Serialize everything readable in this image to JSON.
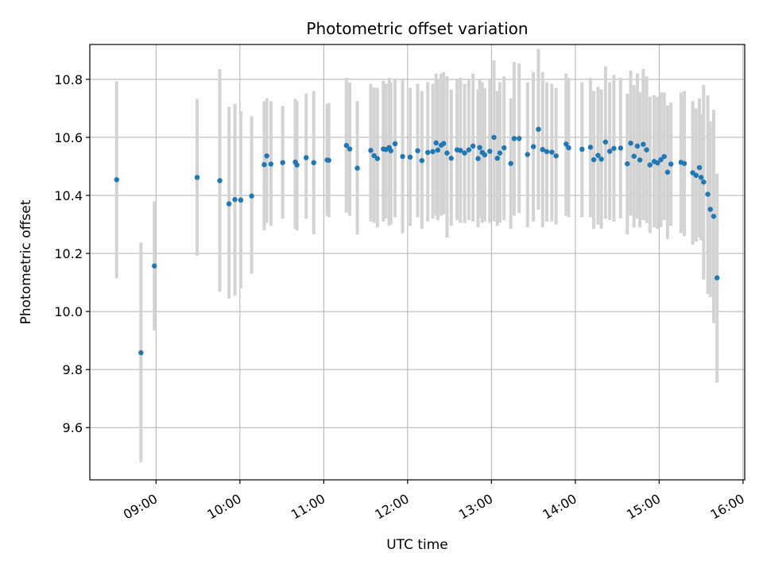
{
  "chart_data": {
    "type": "scatter",
    "title": "Photometric offset variation",
    "xlabel": "UTC time",
    "ylabel": "Photometric offset",
    "x_unit": "hours UTC",
    "xlim": [
      8.21,
      16.02
    ],
    "ylim": [
      9.42,
      10.92
    ],
    "grid": true,
    "legend": "none",
    "xticks": [
      {
        "value": 9,
        "label": "09:00"
      },
      {
        "value": 10,
        "label": "10:00"
      },
      {
        "value": 11,
        "label": "11:00"
      },
      {
        "value": 12,
        "label": "12:00"
      },
      {
        "value": 13,
        "label": "13:00"
      },
      {
        "value": 14,
        "label": "14:00"
      },
      {
        "value": 15,
        "label": "15:00"
      },
      {
        "value": 16,
        "label": "16:00"
      }
    ],
    "yticks": [
      {
        "value": 9.6,
        "label": "9.6"
      },
      {
        "value": 9.8,
        "label": "9.8"
      },
      {
        "value": 10.0,
        "label": "10.0"
      },
      {
        "value": 10.2,
        "label": "10.2"
      },
      {
        "value": 10.4,
        "label": "10.4"
      },
      {
        "value": 10.6,
        "label": "10.6"
      },
      {
        "value": 10.8,
        "label": "10.8"
      }
    ],
    "colors": {
      "point": "#1f77b4",
      "errorbar": "#d3d3d3",
      "grid": "#b0b0b0"
    },
    "series": [
      {
        "name": "offset",
        "x": [
          8.53,
          8.82,
          8.98,
          9.49,
          9.76,
          9.87,
          9.94,
          10.01,
          10.14,
          10.29,
          10.32,
          10.37,
          10.51,
          10.66,
          10.68,
          10.79,
          10.88,
          11.04,
          11.06,
          11.27,
          11.31,
          11.4,
          11.56,
          11.6,
          11.64,
          11.71,
          11.74,
          11.78,
          11.8,
          11.85,
          11.94,
          12.03,
          12.12,
          12.17,
          12.24,
          12.3,
          12.34,
          12.36,
          12.4,
          12.43,
          12.47,
          12.52,
          12.59,
          12.63,
          12.68,
          12.73,
          12.78,
          12.84,
          12.86,
          12.89,
          12.92,
          12.98,
          13.03,
          13.07,
          13.1,
          13.15,
          13.23,
          13.27,
          13.33,
          13.43,
          13.5,
          13.56,
          13.61,
          13.66,
          13.72,
          13.77,
          13.89,
          13.92,
          14.08,
          14.18,
          14.22,
          14.27,
          14.31,
          14.36,
          14.41,
          14.46,
          14.54,
          14.62,
          14.66,
          14.7,
          14.74,
          14.77,
          14.81,
          14.85,
          14.89,
          14.94,
          14.98,
          15.02,
          15.06,
          15.1,
          15.14,
          15.26,
          15.3,
          15.4,
          15.44,
          15.48,
          15.5,
          15.53,
          15.58,
          15.61,
          15.65,
          15.69
        ],
        "y": [
          10.454,
          9.858,
          10.157,
          10.462,
          10.451,
          10.371,
          10.386,
          10.384,
          10.398,
          10.506,
          10.536,
          10.508,
          10.513,
          10.515,
          10.505,
          10.53,
          10.513,
          10.522,
          10.521,
          10.572,
          10.56,
          10.494,
          10.555,
          10.537,
          10.527,
          10.56,
          10.558,
          10.565,
          10.554,
          10.578,
          10.534,
          10.532,
          10.554,
          10.52,
          10.548,
          10.551,
          10.581,
          10.556,
          10.573,
          10.579,
          10.546,
          10.528,
          10.557,
          10.555,
          10.546,
          10.557,
          10.57,
          10.527,
          10.565,
          10.548,
          10.54,
          10.552,
          10.6,
          10.528,
          10.546,
          10.564,
          10.51,
          10.596,
          10.596,
          10.541,
          10.568,
          10.628,
          10.558,
          10.551,
          10.549,
          10.536,
          10.577,
          10.564,
          10.559,
          10.566,
          10.523,
          10.538,
          10.525,
          10.584,
          10.552,
          10.562,
          10.563,
          10.509,
          10.58,
          10.535,
          10.57,
          10.522,
          10.576,
          10.557,
          10.505,
          10.517,
          10.512,
          10.523,
          10.534,
          10.48,
          10.508,
          10.514,
          10.51,
          10.478,
          10.469,
          10.496,
          10.462,
          10.446,
          10.404,
          10.352,
          10.328,
          10.116
        ],
        "y_err_low": [
          10.115,
          9.481,
          9.935,
          10.192,
          10.068,
          10.045,
          10.054,
          10.08,
          10.13,
          10.28,
          10.305,
          10.295,
          10.32,
          10.285,
          10.28,
          10.32,
          10.265,
          10.33,
          10.325,
          10.34,
          10.33,
          10.265,
          10.31,
          10.305,
          10.29,
          10.31,
          10.32,
          10.295,
          10.3,
          10.325,
          10.27,
          10.295,
          10.325,
          10.285,
          10.31,
          10.32,
          10.33,
          10.315,
          10.33,
          10.335,
          10.255,
          10.295,
          10.315,
          10.305,
          10.305,
          10.315,
          10.31,
          10.29,
          10.325,
          10.305,
          10.31,
          10.305,
          10.31,
          10.295,
          10.305,
          10.315,
          10.285,
          10.33,
          10.34,
          10.29,
          10.31,
          10.35,
          10.29,
          10.31,
          10.31,
          10.3,
          10.33,
          10.325,
          10.325,
          10.325,
          10.285,
          10.3,
          10.285,
          10.32,
          10.315,
          10.31,
          10.32,
          10.265,
          10.33,
          10.29,
          10.32,
          10.29,
          10.315,
          10.305,
          10.27,
          10.29,
          10.285,
          10.29,
          10.315,
          10.25,
          10.295,
          10.27,
          10.26,
          10.23,
          10.24,
          10.255,
          10.245,
          10.11,
          10.06,
          10.05,
          9.96,
          9.755
        ],
        "y_err_high": [
          10.793,
          10.237,
          10.38,
          10.732,
          10.835,
          10.705,
          10.715,
          10.69,
          10.673,
          10.724,
          10.735,
          10.725,
          10.708,
          10.733,
          10.725,
          10.751,
          10.76,
          10.715,
          10.718,
          10.805,
          10.79,
          10.725,
          10.785,
          10.772,
          10.77,
          10.795,
          10.785,
          10.805,
          10.79,
          10.8,
          10.8,
          10.77,
          10.785,
          10.76,
          10.79,
          10.785,
          10.82,
          10.8,
          10.82,
          10.825,
          10.81,
          10.765,
          10.8,
          10.805,
          10.785,
          10.8,
          10.82,
          10.765,
          10.8,
          10.79,
          10.77,
          10.8,
          10.865,
          10.76,
          10.79,
          10.81,
          10.735,
          10.86,
          10.855,
          10.79,
          10.825,
          10.905,
          10.825,
          10.79,
          10.785,
          10.77,
          10.82,
          10.805,
          10.79,
          10.805,
          10.76,
          10.775,
          10.765,
          10.845,
          10.79,
          10.815,
          10.805,
          10.75,
          10.83,
          10.78,
          10.82,
          10.755,
          10.835,
          10.81,
          10.74,
          10.745,
          10.74,
          10.755,
          10.755,
          10.71,
          10.72,
          10.755,
          10.76,
          10.725,
          10.7,
          10.735,
          10.68,
          10.78,
          10.745,
          10.655,
          10.695,
          10.475
        ]
      }
    ]
  }
}
